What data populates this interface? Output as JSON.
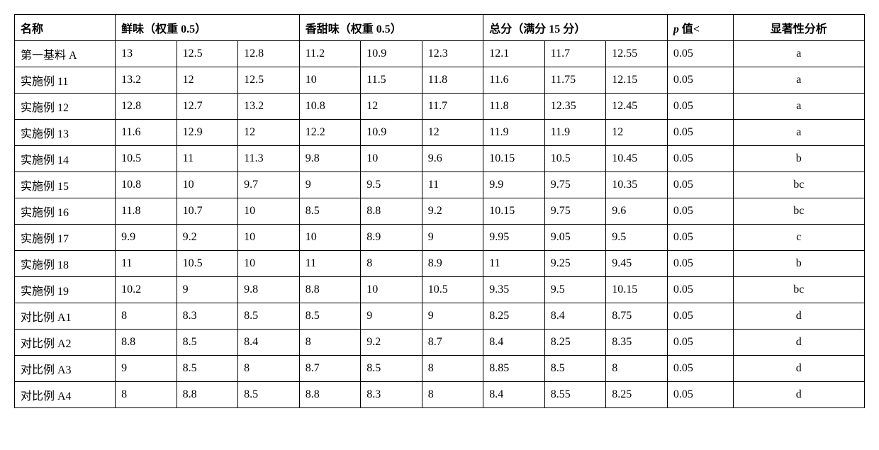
{
  "table": {
    "headers": {
      "name": "名称",
      "xianwei": "鲜味（权重 0.5）",
      "xiangtian": "香甜味（权重 0.5）",
      "zongfen": "总分（满分 15 分）",
      "pval_prefix_italic": "p",
      "pval_suffix": " 值<",
      "sig": "显著性分析"
    },
    "col_widths": {
      "name": 115,
      "value": 70,
      "p": 75,
      "sig": 150
    },
    "colors": {
      "border": "#000000",
      "background": "#ffffff",
      "text": "#000000"
    },
    "font_size": 16,
    "rows": [
      {
        "name": "第一基料 A",
        "xw": [
          "13",
          "12.5",
          "12.8"
        ],
        "xt": [
          "11.2",
          "10.9",
          "12.3"
        ],
        "zf": [
          "12.1",
          "11.7",
          "12.55"
        ],
        "p": "0.05",
        "sig": "a"
      },
      {
        "name": "实施例 11",
        "xw": [
          "13.2",
          "12",
          "12.5"
        ],
        "xt": [
          "10",
          "11.5",
          "11.8"
        ],
        "zf": [
          "11.6",
          "11.75",
          "12.15"
        ],
        "p": "0.05",
        "sig": "a"
      },
      {
        "name": "实施例 12",
        "xw": [
          "12.8",
          "12.7",
          "13.2"
        ],
        "xt": [
          "10.8",
          "12",
          "11.7"
        ],
        "zf": [
          "11.8",
          "12.35",
          "12.45"
        ],
        "p": "0.05",
        "sig": "a"
      },
      {
        "name": "实施例 13",
        "xw": [
          "11.6",
          "12.9",
          "12"
        ],
        "xt": [
          "12.2",
          "10.9",
          "12"
        ],
        "zf": [
          "11.9",
          "11.9",
          "12"
        ],
        "p": "0.05",
        "sig": "a"
      },
      {
        "name": "实施例 14",
        "xw": [
          "10.5",
          "11",
          "11.3"
        ],
        "xt": [
          "9.8",
          "10",
          "9.6"
        ],
        "zf": [
          "10.15",
          "10.5",
          "10.45"
        ],
        "p": "0.05",
        "sig": "b"
      },
      {
        "name": "实施例 15",
        "xw": [
          "10.8",
          "10",
          "9.7"
        ],
        "xt": [
          "9",
          "9.5",
          "11"
        ],
        "zf": [
          "9.9",
          "9.75",
          "10.35"
        ],
        "p": "0.05",
        "sig": "bc"
      },
      {
        "name": "实施例 16",
        "xw": [
          "11.8",
          "10.7",
          "10"
        ],
        "xt": [
          "8.5",
          "8.8",
          "9.2"
        ],
        "zf": [
          "10.15",
          "9.75",
          "9.6"
        ],
        "p": "0.05",
        "sig": "bc"
      },
      {
        "name": "实施例 17",
        "xw": [
          "9.9",
          "9.2",
          "10"
        ],
        "xt": [
          "10",
          "8.9",
          "9"
        ],
        "zf": [
          "9.95",
          "9.05",
          "9.5"
        ],
        "p": "0.05",
        "sig": "c"
      },
      {
        "name": "实施例 18",
        "xw": [
          "11",
          "10.5",
          "10"
        ],
        "xt": [
          "11",
          "8",
          "8.9"
        ],
        "zf": [
          "11",
          "9.25",
          "9.45"
        ],
        "p": "0.05",
        "sig": "b"
      },
      {
        "name": "实施例 19",
        "xw": [
          "10.2",
          "9",
          "9.8"
        ],
        "xt": [
          "8.8",
          "10",
          "10.5"
        ],
        "zf": [
          "9.35",
          "9.5",
          "10.15"
        ],
        "p": "0.05",
        "sig": "bc"
      },
      {
        "name": "对比例 A1",
        "xw": [
          "8",
          "8.3",
          "8.5"
        ],
        "xt": [
          "8.5",
          "9",
          "9"
        ],
        "zf": [
          "8.25",
          "8.4",
          "8.75"
        ],
        "p": "0.05",
        "sig": "d"
      },
      {
        "name": "对比例 A2",
        "xw": [
          "8.8",
          "8.5",
          "8.4"
        ],
        "xt": [
          "8",
          "9.2",
          "8.7"
        ],
        "zf": [
          "8.4",
          "8.25",
          "8.35"
        ],
        "p": "0.05",
        "sig": "d"
      },
      {
        "name": "对比例 A3",
        "xw": [
          "9",
          "8.5",
          "8"
        ],
        "xt": [
          "8.7",
          "8.5",
          "8"
        ],
        "zf": [
          "8.85",
          "8.5",
          "8"
        ],
        "p": "0.05",
        "sig": "d"
      },
      {
        "name": "对比例 A4",
        "xw": [
          "8",
          "8.8",
          "8.5"
        ],
        "xt": [
          "8.8",
          "8.3",
          "8"
        ],
        "zf": [
          "8.4",
          "8.55",
          "8.25"
        ],
        "p": "0.05",
        "sig": "d"
      }
    ]
  }
}
